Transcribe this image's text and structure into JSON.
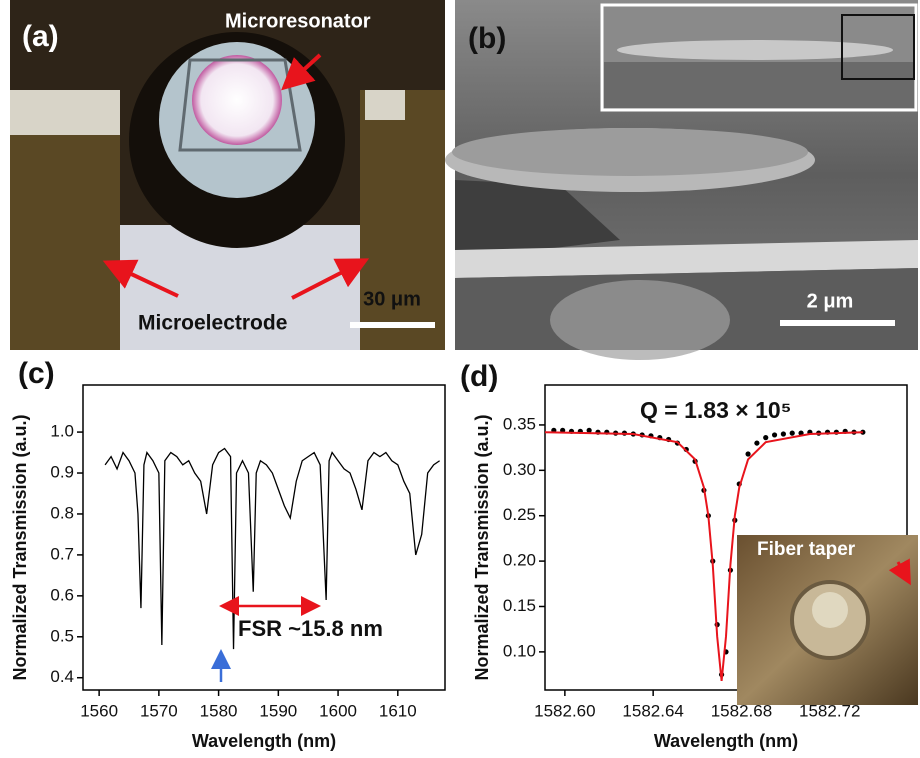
{
  "panels": [
    {
      "label": "(a)",
      "annotations": [
        "Microresonator",
        "Microelectrode"
      ],
      "scale_bar": "30 μm"
    },
    {
      "label": "(b)",
      "scale_bar": "2 μm"
    }
  ],
  "chart_data": [
    {
      "type": "line",
      "panel_label": "(c)",
      "xlabel": "Wavelength (nm)",
      "ylabel": "Normalized Transmission (a.u.)",
      "xlim": [
        1557.3,
        1617.9
      ],
      "ylim": [
        0.37,
        1.115
      ],
      "xticks": [
        1560,
        1570,
        1580,
        1590,
        1600,
        1610
      ],
      "yticks": [
        0.4,
        0.5,
        0.6,
        0.7,
        0.8,
        0.9,
        {
          "value": 1.0,
          "label": "1.0"
        }
      ],
      "series": [
        {
          "color": "#000000",
          "x": [
            1561,
            1562,
            1563,
            1564,
            1565,
            1566,
            1566.5,
            1567,
            1567.5,
            1568,
            1569,
            1570,
            1570.5,
            1571,
            1572,
            1573,
            1574,
            1575,
            1576,
            1577,
            1578,
            1579,
            1580,
            1581,
            1582,
            1582.5,
            1583,
            1584,
            1585,
            1585.8,
            1586.3,
            1587,
            1588,
            1589,
            1590,
            1591,
            1592,
            1593,
            1594,
            1595,
            1596,
            1597,
            1598,
            1598.5,
            1599,
            1600,
            1601,
            1602,
            1603,
            1604,
            1605,
            1606,
            1607,
            1608,
            1609,
            1610,
            1611,
            1612,
            1613,
            1614,
            1615,
            1616,
            1617
          ],
          "values": [
            0.92,
            0.94,
            0.91,
            0.95,
            0.93,
            0.9,
            0.8,
            0.57,
            0.92,
            0.95,
            0.93,
            0.9,
            0.48,
            0.93,
            0.95,
            0.94,
            0.92,
            0.93,
            0.9,
            0.88,
            0.8,
            0.92,
            0.95,
            0.96,
            0.94,
            0.47,
            0.9,
            0.93,
            0.9,
            0.61,
            0.9,
            0.93,
            0.92,
            0.9,
            0.86,
            0.82,
            0.79,
            0.88,
            0.93,
            0.94,
            0.95,
            0.92,
            0.59,
            0.93,
            0.95,
            0.93,
            0.91,
            0.9,
            0.86,
            0.81,
            0.93,
            0.95,
            0.94,
            0.95,
            0.93,
            0.92,
            0.88,
            0.85,
            0.7,
            0.75,
            0.9,
            0.92,
            0.93
          ]
        }
      ],
      "annotations": [
        "FSR ~15.8 nm"
      ]
    },
    {
      "type": "scatter",
      "panel_label": "(d)",
      "xlabel": "Wavelength (nm)",
      "ylabel": "Normalized Transmission (a.u.)",
      "xlim": [
        1582.591,
        1582.755
      ],
      "ylim": [
        0.058,
        0.394
      ],
      "xticks": [
        {
          "value": 1582.6,
          "label": "1582.60"
        },
        1582.64,
        1582.68,
        1582.72
      ],
      "yticks": [
        {
          "value": 0.1,
          "label": "0.10"
        },
        0.15,
        {
          "value": 0.2,
          "label": "0.20"
        },
        0.25,
        {
          "value": 0.3,
          "label": "0.30"
        },
        0.35
      ],
      "series": [
        {
          "kind": "markers",
          "color": "#000000",
          "x": [
            1582.595,
            1582.599,
            1582.603,
            1582.607,
            1582.611,
            1582.615,
            1582.619,
            1582.623,
            1582.627,
            1582.631,
            1582.635,
            1582.639,
            1582.643,
            1582.647,
            1582.651,
            1582.655,
            1582.659,
            1582.663,
            1582.665,
            1582.667,
            1582.669,
            1582.671,
            1582.673,
            1582.675,
            1582.677,
            1582.679,
            1582.683,
            1582.687,
            1582.691,
            1582.695,
            1582.699,
            1582.703,
            1582.707,
            1582.711,
            1582.715,
            1582.719,
            1582.723,
            1582.727,
            1582.731,
            1582.735
          ],
          "values": [
            0.344,
            0.344,
            0.343,
            0.343,
            0.344,
            0.342,
            0.342,
            0.341,
            0.341,
            0.34,
            0.339,
            0.338,
            0.336,
            0.334,
            0.33,
            0.323,
            0.31,
            0.278,
            0.25,
            0.2,
            0.13,
            0.075,
            0.1,
            0.19,
            0.245,
            0.285,
            0.318,
            0.33,
            0.336,
            0.339,
            0.34,
            0.341,
            0.341,
            0.342,
            0.341,
            0.342,
            0.342,
            0.343,
            0.342,
            0.342
          ]
        },
        {
          "kind": "line",
          "color": "#e8141c",
          "x": [
            1582.591,
            1582.631,
            1582.651,
            1582.659,
            1582.663,
            1582.665,
            1582.667,
            1582.669,
            1582.671,
            1582.673,
            1582.675,
            1582.677,
            1582.679,
            1582.683,
            1582.691,
            1582.711,
            1582.735
          ],
          "values": [
            0.342,
            0.34,
            0.331,
            0.312,
            0.281,
            0.25,
            0.196,
            0.117,
            0.068,
            0.117,
            0.196,
            0.25,
            0.281,
            0.312,
            0.331,
            0.34,
            0.342
          ]
        }
      ],
      "annotations": [
        "Q = 1.83 × 10⁵",
        "Fiber taper"
      ]
    }
  ]
}
